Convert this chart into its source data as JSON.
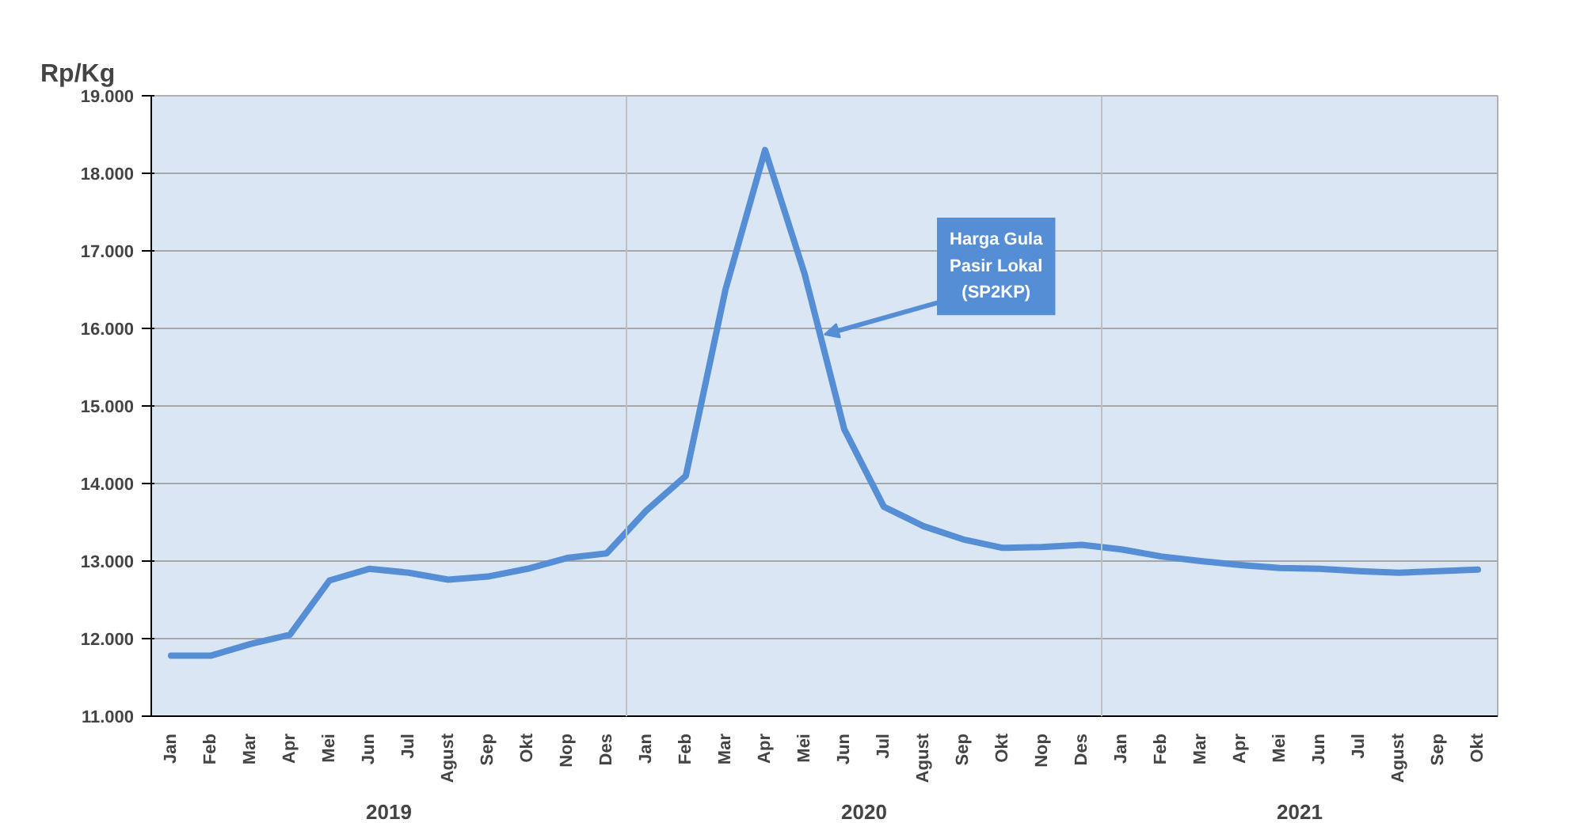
{
  "chart_data": {
    "type": "line",
    "ylabel": "Rp/Kg",
    "categories": [
      "Jan",
      "Feb",
      "Mar",
      "Apr",
      "Mei",
      "Jun",
      "Jul",
      "Agust",
      "Sep",
      "Okt",
      "Nop",
      "Des",
      "Jan",
      "Feb",
      "Mar",
      "Apr",
      "Mei",
      "Jun",
      "Jul",
      "Agust",
      "Sep",
      "Okt",
      "Nop",
      "Des",
      "Jan",
      "Feb",
      "Mar",
      "Apr",
      "Mei",
      "Jun",
      "Jul",
      "Agust",
      "Sep",
      "Okt"
    ],
    "series": [
      {
        "name": "Harga Gula Pasir Lokal (SP2KP)",
        "color": "#558ed5",
        "values": [
          11780,
          11780,
          11930,
          12050,
          12750,
          12900,
          12850,
          12760,
          12800,
          12900,
          13040,
          13100,
          13650,
          14100,
          16500,
          18300,
          16700,
          14700,
          13700,
          13450,
          13280,
          13170,
          13180,
          13210,
          13150,
          13060,
          13000,
          12950,
          12910,
          12900,
          12870,
          12850,
          12870,
          12890
        ]
      }
    ],
    "annotations": [
      "2019",
      "2020",
      "2021"
    ],
    "ylim": [
      11000,
      19000
    ],
    "yticks": [
      {
        "value": 11000,
        "label": "11.000"
      },
      {
        "value": 12000,
        "label": "12.000"
      },
      {
        "value": 13000,
        "label": "13.000"
      },
      {
        "value": 14000,
        "label": "14.000"
      },
      {
        "value": 15000,
        "label": "15.000"
      },
      {
        "value": 16000,
        "label": "16.000"
      },
      {
        "value": 17000,
        "label": "17.000"
      },
      {
        "value": 18000,
        "label": "18.000"
      },
      {
        "value": 19000,
        "label": "19.000"
      }
    ],
    "grid": "y",
    "line_style": "solid",
    "marker": "none"
  }
}
